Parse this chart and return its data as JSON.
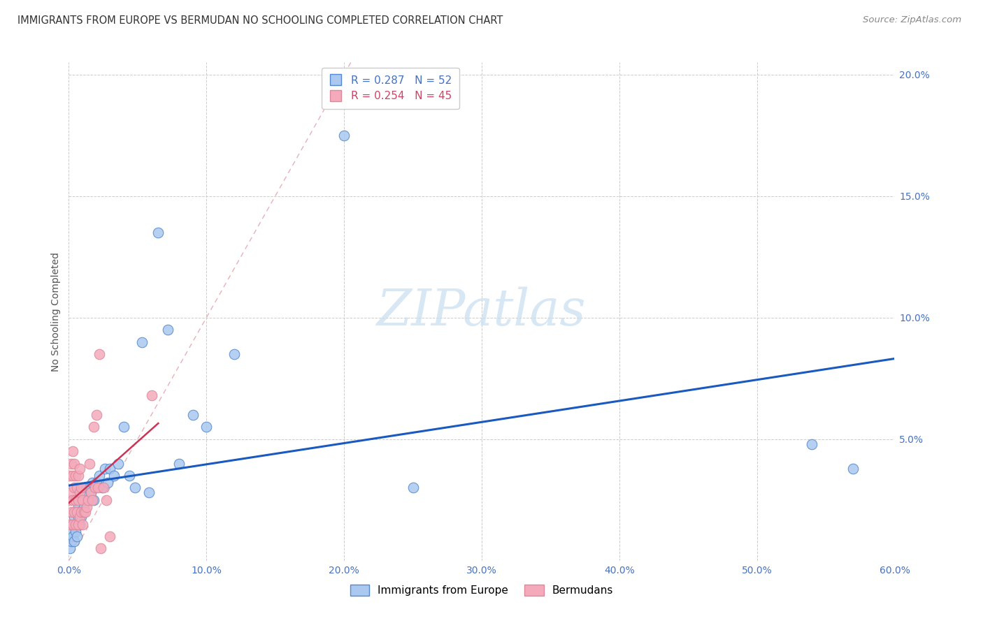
{
  "title": "IMMIGRANTS FROM EUROPE VS BERMUDAN NO SCHOOLING COMPLETED CORRELATION CHART",
  "source": "Source: ZipAtlas.com",
  "ylabel": "No Schooling Completed",
  "xlim": [
    0.0,
    0.6
  ],
  "ylim": [
    0.0,
    0.205
  ],
  "x_ticks": [
    0.0,
    0.1,
    0.2,
    0.3,
    0.4,
    0.5,
    0.6
  ],
  "x_tick_labels": [
    "0.0%",
    "10.0%",
    "20.0%",
    "30.0%",
    "40.0%",
    "50.0%",
    "60.0%"
  ],
  "y_ticks": [
    0.0,
    0.05,
    0.1,
    0.15,
    0.2
  ],
  "y_tick_labels": [
    "",
    "5.0%",
    "10.0%",
    "15.0%",
    "20.0%"
  ],
  "blue_color": "#aac8f0",
  "pink_color": "#f4aabb",
  "blue_edge": "#5588cc",
  "pink_edge": "#dd8899",
  "regression_blue": "#1a5abf",
  "regression_pink": "#cc3355",
  "diag_color": "#e8b0b8",
  "watermark_zip": "#c8ddf0",
  "watermark_atlas": "#8ab8e0",
  "legend_label1": "Immigrants from Europe",
  "legend_label2": "Bermudans",
  "blue_x": [
    0.001,
    0.002,
    0.002,
    0.003,
    0.003,
    0.004,
    0.004,
    0.005,
    0.005,
    0.006,
    0.006,
    0.007,
    0.007,
    0.008,
    0.008,
    0.009,
    0.009,
    0.01,
    0.01,
    0.011,
    0.011,
    0.012,
    0.013,
    0.014,
    0.015,
    0.016,
    0.017,
    0.018,
    0.019,
    0.02,
    0.022,
    0.024,
    0.026,
    0.028,
    0.03,
    0.033,
    0.036,
    0.04,
    0.044,
    0.048,
    0.053,
    0.058,
    0.065,
    0.072,
    0.08,
    0.09,
    0.1,
    0.12,
    0.2,
    0.25,
    0.54,
    0.57
  ],
  "blue_y": [
    0.005,
    0.008,
    0.012,
    0.01,
    0.015,
    0.008,
    0.018,
    0.012,
    0.02,
    0.01,
    0.015,
    0.018,
    0.022,
    0.015,
    0.02,
    0.018,
    0.025,
    0.02,
    0.028,
    0.022,
    0.025,
    0.028,
    0.03,
    0.025,
    0.03,
    0.028,
    0.032,
    0.025,
    0.03,
    0.032,
    0.035,
    0.03,
    0.038,
    0.032,
    0.038,
    0.035,
    0.04,
    0.055,
    0.035,
    0.03,
    0.09,
    0.028,
    0.135,
    0.095,
    0.04,
    0.06,
    0.055,
    0.085,
    0.175,
    0.03,
    0.048,
    0.038
  ],
  "pink_x": [
    0.001,
    0.001,
    0.001,
    0.002,
    0.002,
    0.002,
    0.003,
    0.003,
    0.003,
    0.003,
    0.004,
    0.004,
    0.004,
    0.005,
    0.005,
    0.005,
    0.006,
    0.006,
    0.007,
    0.007,
    0.007,
    0.008,
    0.008,
    0.008,
    0.009,
    0.009,
    0.01,
    0.01,
    0.011,
    0.012,
    0.013,
    0.014,
    0.015,
    0.016,
    0.017,
    0.018,
    0.019,
    0.02,
    0.021,
    0.022,
    0.023,
    0.025,
    0.027,
    0.03,
    0.06
  ],
  "pink_y": [
    0.015,
    0.025,
    0.035,
    0.02,
    0.028,
    0.04,
    0.015,
    0.025,
    0.035,
    0.045,
    0.02,
    0.03,
    0.04,
    0.015,
    0.025,
    0.035,
    0.02,
    0.03,
    0.015,
    0.025,
    0.035,
    0.018,
    0.028,
    0.038,
    0.02,
    0.03,
    0.015,
    0.025,
    0.02,
    0.02,
    0.022,
    0.025,
    0.04,
    0.028,
    0.025,
    0.055,
    0.03,
    0.06,
    0.03,
    0.085,
    0.005,
    0.03,
    0.025,
    0.01,
    0.068
  ],
  "title_fontsize": 10.5,
  "source_fontsize": 9.5,
  "tick_fontsize": 10,
  "legend_fontsize": 11,
  "background_color": "#ffffff",
  "grid_color": "#cccccc",
  "title_color": "#333333",
  "blue_text_color": "#4472c4",
  "pink_text_color": "#cc4466",
  "source_color": "#888888"
}
